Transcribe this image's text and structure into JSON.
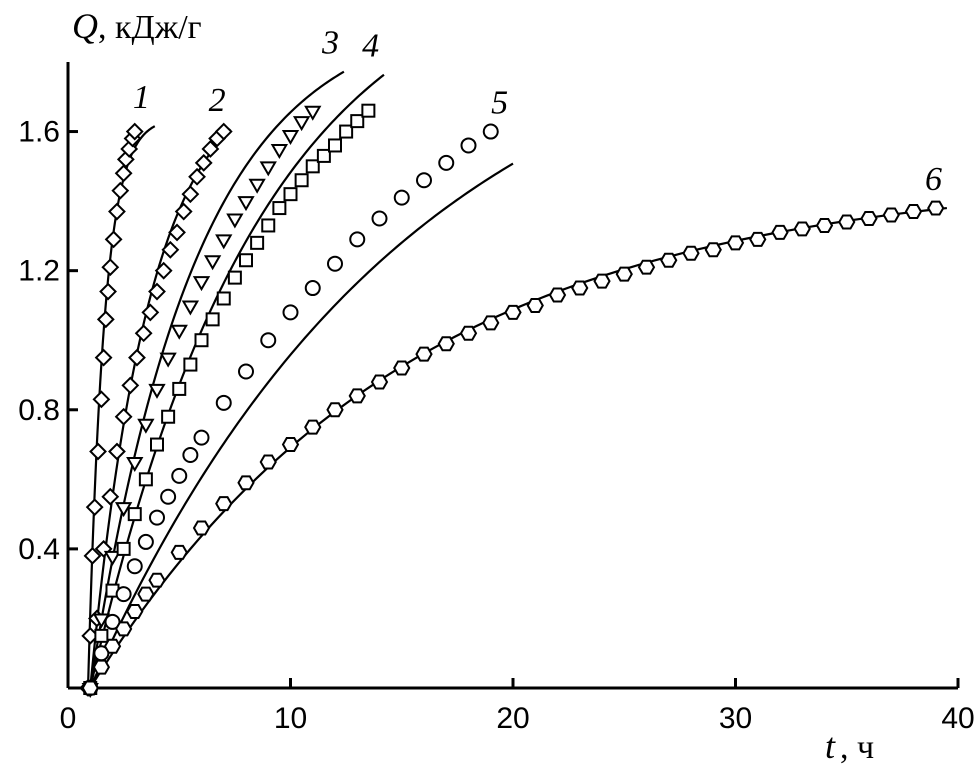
{
  "chart_data": {
    "type": "scatter",
    "title": "",
    "ylabel_symbol": "Q",
    "ylabel_unit": ", кДж/г",
    "xlabel_symbol": "t",
    "xlabel_unit": ", ч",
    "xlim": [
      0,
      40
    ],
    "ylim": [
      0,
      1.8
    ],
    "xticks": [
      0,
      10,
      20,
      30,
      40
    ],
    "xtick_labels": [
      "0",
      "10",
      "20",
      "30",
      "40"
    ],
    "yticks": [
      0.4,
      0.8,
      1.2,
      1.6
    ],
    "ytick_labels": [
      "0.4",
      "0.8",
      "1.2",
      "1.6"
    ],
    "grid": false,
    "series": [
      {
        "name": "1",
        "marker": "diamond",
        "points": [
          [
            0.9,
            0.0
          ],
          [
            1.0,
            0.15
          ],
          [
            1.1,
            0.38
          ],
          [
            1.2,
            0.52
          ],
          [
            1.35,
            0.68
          ],
          [
            1.5,
            0.83
          ],
          [
            1.6,
            0.95
          ],
          [
            1.7,
            1.06
          ],
          [
            1.8,
            1.14
          ],
          [
            1.9,
            1.21
          ],
          [
            2.05,
            1.29
          ],
          [
            2.2,
            1.37
          ],
          [
            2.35,
            1.43
          ],
          [
            2.5,
            1.48
          ],
          [
            2.6,
            1.52
          ],
          [
            2.75,
            1.55
          ],
          [
            2.9,
            1.58
          ],
          [
            3.0,
            1.6
          ]
        ],
        "fit": {
          "qmax": 1.64,
          "k": 1.4,
          "x0": 0.9,
          "x_end": 3.9
        }
      },
      {
        "name": "2",
        "marker": "diamond",
        "points": [
          [
            1.0,
            0.0
          ],
          [
            1.3,
            0.2
          ],
          [
            1.6,
            0.4
          ],
          [
            1.9,
            0.55
          ],
          [
            2.2,
            0.68
          ],
          [
            2.5,
            0.78
          ],
          [
            2.8,
            0.87
          ],
          [
            3.1,
            0.95
          ],
          [
            3.4,
            1.02
          ],
          [
            3.7,
            1.08
          ],
          [
            4.0,
            1.14
          ],
          [
            4.3,
            1.2
          ],
          [
            4.6,
            1.26
          ],
          [
            4.9,
            1.31
          ],
          [
            5.2,
            1.37
          ],
          [
            5.5,
            1.42
          ],
          [
            5.8,
            1.47
          ],
          [
            6.1,
            1.51
          ],
          [
            6.4,
            1.55
          ],
          [
            6.7,
            1.58
          ],
          [
            7.0,
            1.6
          ]
        ],
        "fit": {
          "qmax": 1.78,
          "k": 0.37,
          "x0": 1.0,
          "x_end": 7.3
        }
      },
      {
        "name": "3",
        "marker": "triangle-down",
        "points": [
          [
            1.0,
            0.0
          ],
          [
            1.5,
            0.2
          ],
          [
            2.0,
            0.38
          ],
          [
            2.5,
            0.52
          ],
          [
            3.0,
            0.65
          ],
          [
            3.5,
            0.76
          ],
          [
            4.0,
            0.86
          ],
          [
            4.5,
            0.95
          ],
          [
            5.0,
            1.03
          ],
          [
            5.5,
            1.1
          ],
          [
            6.0,
            1.17
          ],
          [
            6.5,
            1.23
          ],
          [
            7.0,
            1.29
          ],
          [
            7.5,
            1.35
          ],
          [
            8.0,
            1.4
          ],
          [
            8.5,
            1.45
          ],
          [
            9.0,
            1.5
          ],
          [
            9.5,
            1.55
          ],
          [
            10.0,
            1.59
          ],
          [
            10.5,
            1.63
          ],
          [
            11.0,
            1.66
          ]
        ],
        "fit": {
          "qmax": 1.95,
          "k": 0.21,
          "x0": 1.0,
          "x_end": 12.4
        }
      },
      {
        "name": "4",
        "marker": "square",
        "points": [
          [
            1.0,
            0.0
          ],
          [
            1.5,
            0.15
          ],
          [
            2.0,
            0.28
          ],
          [
            2.5,
            0.4
          ],
          [
            3.0,
            0.5
          ],
          [
            3.5,
            0.6
          ],
          [
            4.0,
            0.7
          ],
          [
            4.5,
            0.78
          ],
          [
            5.0,
            0.86
          ],
          [
            5.5,
            0.93
          ],
          [
            6.0,
            1.0
          ],
          [
            6.5,
            1.06
          ],
          [
            7.0,
            1.12
          ],
          [
            7.5,
            1.18
          ],
          [
            8.0,
            1.23
          ],
          [
            8.5,
            1.28
          ],
          [
            9.0,
            1.33
          ],
          [
            9.5,
            1.38
          ],
          [
            10.0,
            1.42
          ],
          [
            10.5,
            1.46
          ],
          [
            11.0,
            1.5
          ],
          [
            11.5,
            1.53
          ],
          [
            12.0,
            1.56
          ],
          [
            12.5,
            1.6
          ],
          [
            13.0,
            1.63
          ],
          [
            13.5,
            1.66
          ]
        ],
        "fit": {
          "qmax": 2.15,
          "k": 0.13,
          "x0": 1.0,
          "x_end": 14.2
        }
      },
      {
        "name": "5",
        "marker": "circle",
        "points": [
          [
            1.0,
            0.0
          ],
          [
            1.5,
            0.1
          ],
          [
            2.0,
            0.19
          ],
          [
            2.5,
            0.27
          ],
          [
            3.0,
            0.35
          ],
          [
            3.5,
            0.42
          ],
          [
            4.0,
            0.49
          ],
          [
            4.5,
            0.55
          ],
          [
            5.0,
            0.61
          ],
          [
            5.5,
            0.67
          ],
          [
            6.0,
            0.72
          ],
          [
            7.0,
            0.82
          ],
          [
            8.0,
            0.91
          ],
          [
            9.0,
            1.0
          ],
          [
            10.0,
            1.08
          ],
          [
            11.0,
            1.15
          ],
          [
            12.0,
            1.22
          ],
          [
            13.0,
            1.29
          ],
          [
            14.0,
            1.35
          ],
          [
            15.0,
            1.41
          ],
          [
            16.0,
            1.46
          ],
          [
            17.0,
            1.51
          ],
          [
            18.0,
            1.56
          ],
          [
            19.0,
            1.6
          ]
        ],
        "fit": {
          "qmax": 2.05,
          "k": 0.07,
          "x0": 1.0,
          "x_end": 20.0
        }
      },
      {
        "name": "6",
        "marker": "hexagon",
        "points": [
          [
            1.0,
            0.0
          ],
          [
            1.5,
            0.06
          ],
          [
            2.0,
            0.12
          ],
          [
            2.5,
            0.17
          ],
          [
            3.0,
            0.22
          ],
          [
            3.5,
            0.27
          ],
          [
            4.0,
            0.31
          ],
          [
            5.0,
            0.39
          ],
          [
            6.0,
            0.46
          ],
          [
            7.0,
            0.53
          ],
          [
            8.0,
            0.59
          ],
          [
            9.0,
            0.65
          ],
          [
            10.0,
            0.7
          ],
          [
            11.0,
            0.75
          ],
          [
            12.0,
            0.8
          ],
          [
            13.0,
            0.84
          ],
          [
            14.0,
            0.88
          ],
          [
            15.0,
            0.92
          ],
          [
            16.0,
            0.96
          ],
          [
            17.0,
            0.99
          ],
          [
            18.0,
            1.02
          ],
          [
            19.0,
            1.05
          ],
          [
            20.0,
            1.08
          ],
          [
            21.0,
            1.1
          ],
          [
            22.0,
            1.13
          ],
          [
            23.0,
            1.15
          ],
          [
            24.0,
            1.17
          ],
          [
            25.0,
            1.19
          ],
          [
            26.0,
            1.21
          ],
          [
            27.0,
            1.23
          ],
          [
            28.0,
            1.25
          ],
          [
            29.0,
            1.26
          ],
          [
            30.0,
            1.28
          ],
          [
            31.0,
            1.29
          ],
          [
            32.0,
            1.31
          ],
          [
            33.0,
            1.32
          ],
          [
            34.0,
            1.33
          ],
          [
            35.0,
            1.34
          ],
          [
            36.0,
            1.35
          ],
          [
            37.0,
            1.36
          ],
          [
            38.0,
            1.37
          ],
          [
            39.0,
            1.38
          ]
        ],
        "fit": {
          "qmax": 1.48,
          "k": 0.07,
          "x0": 1.0,
          "x_end": 39.5
        }
      }
    ]
  }
}
